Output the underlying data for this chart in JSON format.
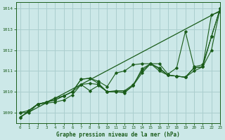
{
  "title": "Graphe pression niveau de la mer (hPa)",
  "bg_color": "#cce8e8",
  "grid_color": "#aacece",
  "line_color": "#1a5c1a",
  "xlim": [
    -0.5,
    23
  ],
  "ylim": [
    1008.5,
    1014.3
  ],
  "yticks": [
    1009,
    1010,
    1011,
    1012,
    1013,
    1014
  ],
  "xticks": [
    0,
    1,
    2,
    3,
    4,
    5,
    6,
    7,
    8,
    9,
    10,
    11,
    12,
    13,
    14,
    15,
    16,
    17,
    18,
    19,
    20,
    21,
    22,
    23
  ],
  "straight_line": [
    1008.8,
    1013.9
  ],
  "series": [
    [
      1009.0,
      1009.1,
      1009.4,
      1009.5,
      1009.7,
      1009.8,
      1010.0,
      1010.35,
      1010.4,
      1010.35,
      1010.0,
      1010.05,
      1010.05,
      1010.35,
      1011.0,
      1011.35,
      1011.1,
      1010.8,
      1010.75,
      1010.7,
      1011.0,
      1011.2,
      1012.0,
      1014.0
    ],
    [
      1009.0,
      1009.0,
      1009.4,
      1009.45,
      1009.5,
      1009.6,
      1009.85,
      1010.35,
      1010.05,
      1010.3,
      1010.0,
      1010.0,
      1009.95,
      1010.3,
      1010.9,
      1011.35,
      1011.0,
      1010.8,
      1010.75,
      1010.7,
      1011.15,
      1011.2,
      1012.65,
      1014.0
    ],
    [
      1008.75,
      1009.1,
      1009.4,
      1009.5,
      1009.6,
      1009.8,
      1010.0,
      1010.6,
      1010.65,
      1010.4,
      1010.0,
      1010.0,
      1010.0,
      1010.3,
      1011.1,
      1011.35,
      1011.15,
      1010.8,
      1010.75,
      1010.7,
      1011.15,
      1011.2,
      1013.7,
      1013.85
    ],
    [
      1008.75,
      1009.1,
      1009.4,
      1009.5,
      1009.6,
      1009.8,
      1010.0,
      1010.6,
      1010.65,
      1010.5,
      1010.25,
      1010.9,
      1011.0,
      1011.3,
      1011.35,
      1011.35,
      1011.35,
      1010.85,
      1011.15,
      1012.9,
      1011.2,
      1011.3,
      1012.65,
      1014.0
    ]
  ]
}
